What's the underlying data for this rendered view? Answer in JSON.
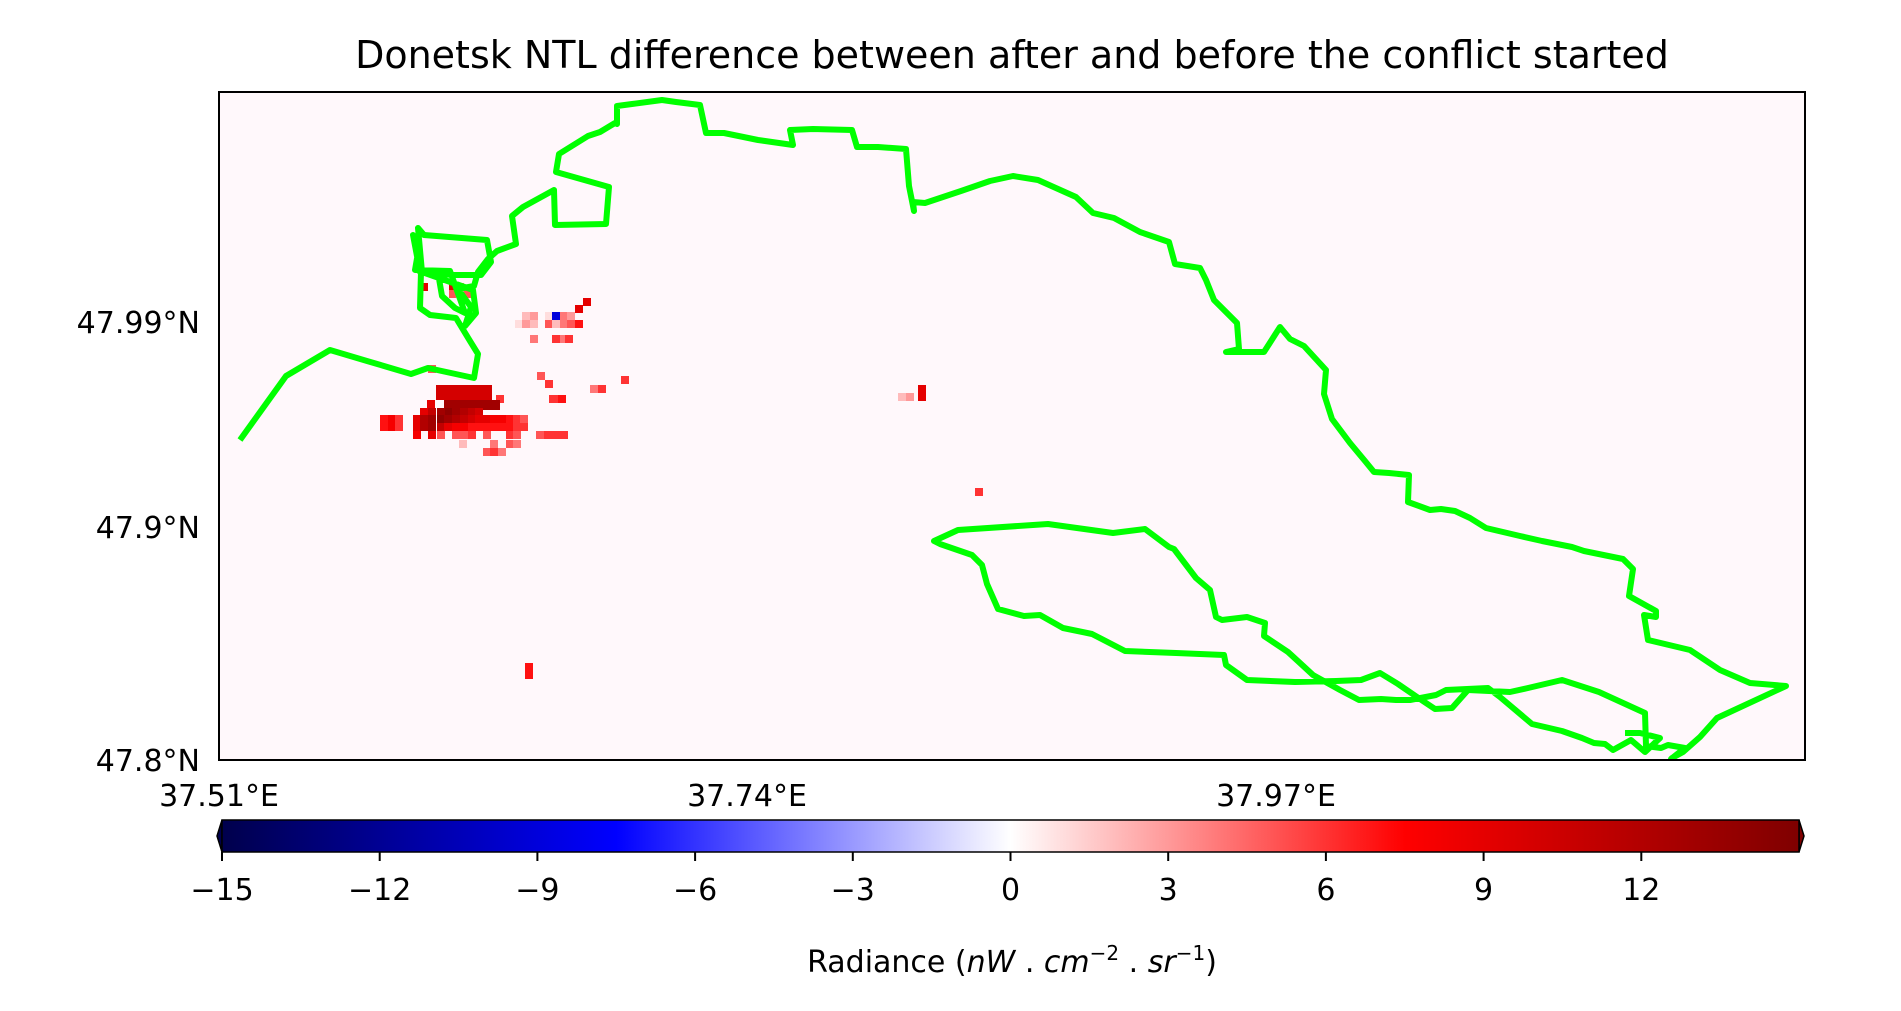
{
  "map": {
    "title": "Donetsk NTL difference between after and before the conflict started",
    "lat_ticks": [
      {
        "value": 47.99,
        "label": "47.99°N"
      },
      {
        "value": 47.9,
        "label": "47.9°N"
      },
      {
        "value": 47.8,
        "label": "47.8°N"
      }
    ],
    "lon_ticks": [
      {
        "value": 37.51,
        "label": "37.51°E"
      },
      {
        "value": 37.74,
        "label": "37.74°E"
      },
      {
        "value": 37.97,
        "label": "37.97°E"
      }
    ],
    "boundary_color": "#00ff00",
    "background_value_color": "#fff8fb"
  },
  "colorbar": {
    "label_prefix": "Radiance (",
    "label_var_1": "nW",
    "label_sep_1": " . ",
    "label_var_2": "cm",
    "label_exp_2": "−2",
    "label_sep_2": " . ",
    "label_var_3": "sr",
    "label_exp_3": "−1",
    "label_suffix": ")",
    "range": [
      -15,
      15
    ],
    "colormap": "seismic",
    "ticks": [
      {
        "value": -15,
        "label": "−15"
      },
      {
        "value": -12,
        "label": "−12"
      },
      {
        "value": -9,
        "label": "−9"
      },
      {
        "value": -6,
        "label": "−6"
      },
      {
        "value": -3,
        "label": "−3"
      },
      {
        "value": 0,
        "label": "0"
      },
      {
        "value": 3,
        "label": "3"
      },
      {
        "value": 6,
        "label": "6"
      },
      {
        "value": 9,
        "label": "9"
      },
      {
        "value": 12,
        "label": "12"
      }
    ]
  }
}
